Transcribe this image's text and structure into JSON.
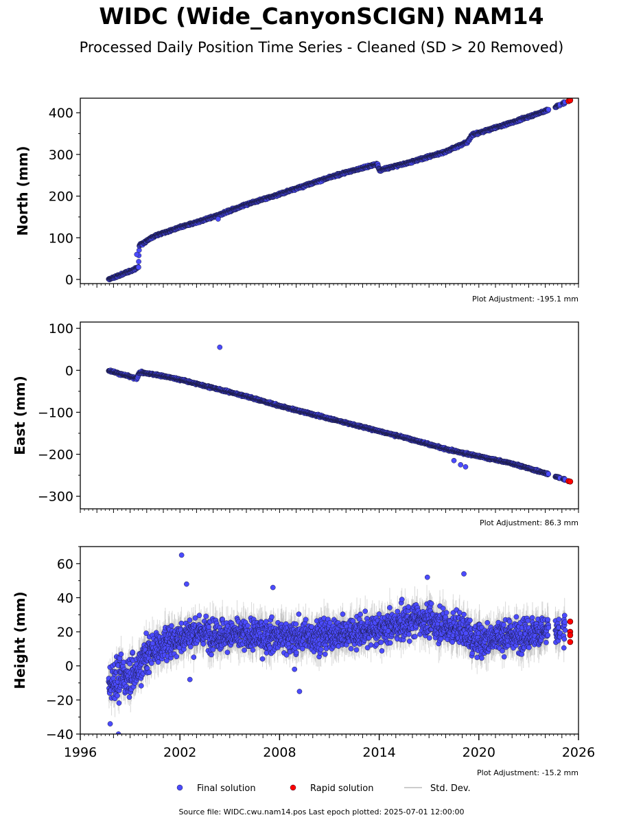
{
  "header": {
    "title": "WIDC (Wide_CanyonSCIGN) NAM14",
    "subtitle": "Processed Daily Position Time Series - Cleaned (SD > 20 Removed)"
  },
  "footer": {
    "source_text": "Source file: WIDC.cwu.nam14.pos  Last epoch plotted: 2025-07-01 12:00:00"
  },
  "legend": [
    {
      "label": "Final solution",
      "type": "marker",
      "color": "#4b4bff"
    },
    {
      "label": "Rapid solution",
      "type": "marker",
      "color": "#ff0000"
    },
    {
      "label": "Std. Dev.",
      "type": "line",
      "color": "#bbbbbb"
    }
  ],
  "chart_data": [
    {
      "type": "scatter",
      "ylabel": "North (mm)",
      "annotation": "Plot Adjustment: -195.1 mm",
      "xlim": [
        1996,
        2026
      ],
      "ylim": [
        -10,
        435
      ],
      "yticks": [
        0,
        100,
        200,
        300,
        400
      ],
      "series": [
        {
          "name": "Final solution",
          "color": "#4b4bff",
          "points": [
            [
              1997.7,
              0
            ],
            [
              1998.5,
              12
            ],
            [
              1999.3,
              25
            ],
            [
              1999.5,
              30
            ],
            [
              1999.55,
              82
            ],
            [
              2000.5,
              105
            ],
            [
              2002,
              125
            ],
            [
              2004,
              150
            ],
            [
              2006,
              180
            ],
            [
              2008,
              205
            ],
            [
              2010,
              232
            ],
            [
              2012,
              257
            ],
            [
              2013.9,
              277
            ],
            [
              2014.0,
              262
            ],
            [
              2016,
              283
            ],
            [
              2018,
              307
            ],
            [
              2019.3,
              330
            ],
            [
              2019.6,
              347
            ],
            [
              2022,
              377
            ],
            [
              2024.4,
              410
            ],
            [
              2025.2,
              425
            ]
          ]
        },
        {
          "name": "Rapid solution",
          "color": "#ff0000",
          "points": [
            [
              2025.4,
              428
            ],
            [
              2025.5,
              430
            ]
          ]
        }
      ],
      "outliers": [
        [
          1999.4,
          60
        ],
        [
          2004.3,
          145
        ]
      ],
      "gaps": [
        [
          2024.2,
          2024.6
        ],
        [
          2024.9,
          2025.05
        ]
      ]
    },
    {
      "type": "scatter",
      "ylabel": "East (mm)",
      "annotation": "Plot Adjustment: 86.3 mm",
      "xlim": [
        1996,
        2026
      ],
      "ylim": [
        -330,
        115
      ],
      "yticks": [
        100,
        0,
        -100,
        -200,
        -300
      ],
      "series": [
        {
          "name": "Final solution",
          "color": "#4b4bff",
          "points": [
            [
              1997.7,
              0
            ],
            [
              1998.5,
              -10
            ],
            [
              1999.4,
              -20
            ],
            [
              1999.55,
              -5
            ],
            [
              2000.5,
              -10
            ],
            [
              2002,
              -22
            ],
            [
              2004,
              -42
            ],
            [
              2006,
              -62
            ],
            [
              2008,
              -85
            ],
            [
              2010,
              -105
            ],
            [
              2012,
              -125
            ],
            [
              2014,
              -145
            ],
            [
              2016,
              -165
            ],
            [
              2018,
              -188
            ],
            [
              2019.4,
              -200
            ],
            [
              2020,
              -205
            ],
            [
              2022,
              -222
            ],
            [
              2024.4,
              -250
            ],
            [
              2025.2,
              -260
            ]
          ]
        },
        {
          "name": "Rapid solution",
          "color": "#ff0000",
          "points": [
            [
              2025.4,
              -264
            ],
            [
              2025.5,
              -265
            ]
          ]
        }
      ],
      "outliers": [
        [
          2004.4,
          55
        ],
        [
          2018.5,
          -215
        ],
        [
          2018.9,
          -225
        ],
        [
          2019.2,
          -230
        ]
      ],
      "gaps": [
        [
          2024.2,
          2024.6
        ],
        [
          2024.9,
          2025.05
        ]
      ]
    },
    {
      "type": "scatter",
      "ylabel": "Height (mm)",
      "annotation": "Plot Adjustment: -15.2 mm",
      "xlim": [
        1996,
        2026
      ],
      "ylim": [
        -40,
        70
      ],
      "yticks": [
        60,
        40,
        20,
        0,
        -20,
        -40
      ],
      "xticks": [
        1996,
        2002,
        2008,
        2014,
        2020,
        2026
      ],
      "series": [
        {
          "name": "Final solution",
          "color": "#4b4bff",
          "points": [
            [
              1997.7,
              -10
            ],
            [
              1998.2,
              -8
            ],
            [
              1998.8,
              -5
            ],
            [
              1999.3,
              -5
            ],
            [
              1999.8,
              5
            ],
            [
              2000.5,
              10
            ],
            [
              2001.5,
              15
            ],
            [
              2003,
              20
            ],
            [
              2005,
              18
            ],
            [
              2007,
              18
            ],
            [
              2009,
              17
            ],
            [
              2011,
              18
            ],
            [
              2013,
              20
            ],
            [
              2015,
              23
            ],
            [
              2016.5,
              28
            ],
            [
              2017.5,
              24
            ],
            [
              2018.5,
              22
            ],
            [
              2019.3,
              20
            ],
            [
              2019.6,
              15
            ],
            [
              2021,
              17
            ],
            [
              2022.5,
              18
            ],
            [
              2023.5,
              20
            ],
            [
              2024.2,
              20
            ],
            [
              2024.7,
              20
            ],
            [
              2025.2,
              20
            ]
          ]
        },
        {
          "name": "Rapid solution",
          "color": "#ff0000",
          "points": [
            [
              2025.5,
              26
            ],
            [
              2025.5,
              20
            ],
            [
              2025.5,
              18
            ],
            [
              2025.5,
              14
            ]
          ]
        }
      ],
      "outliers": [
        [
          2002.1,
          65
        ],
        [
          2002.4,
          48
        ],
        [
          2002.6,
          -8
        ],
        [
          2009.2,
          -15
        ],
        [
          2008.9,
          -2
        ],
        [
          1998.3,
          -40
        ],
        [
          1997.8,
          -34
        ],
        [
          2016.9,
          52
        ],
        [
          2019.1,
          54
        ],
        [
          2007.6,
          46
        ]
      ],
      "gaps": [
        [
          2024.2,
          2024.6
        ],
        [
          2024.9,
          2025.05
        ]
      ]
    }
  ]
}
